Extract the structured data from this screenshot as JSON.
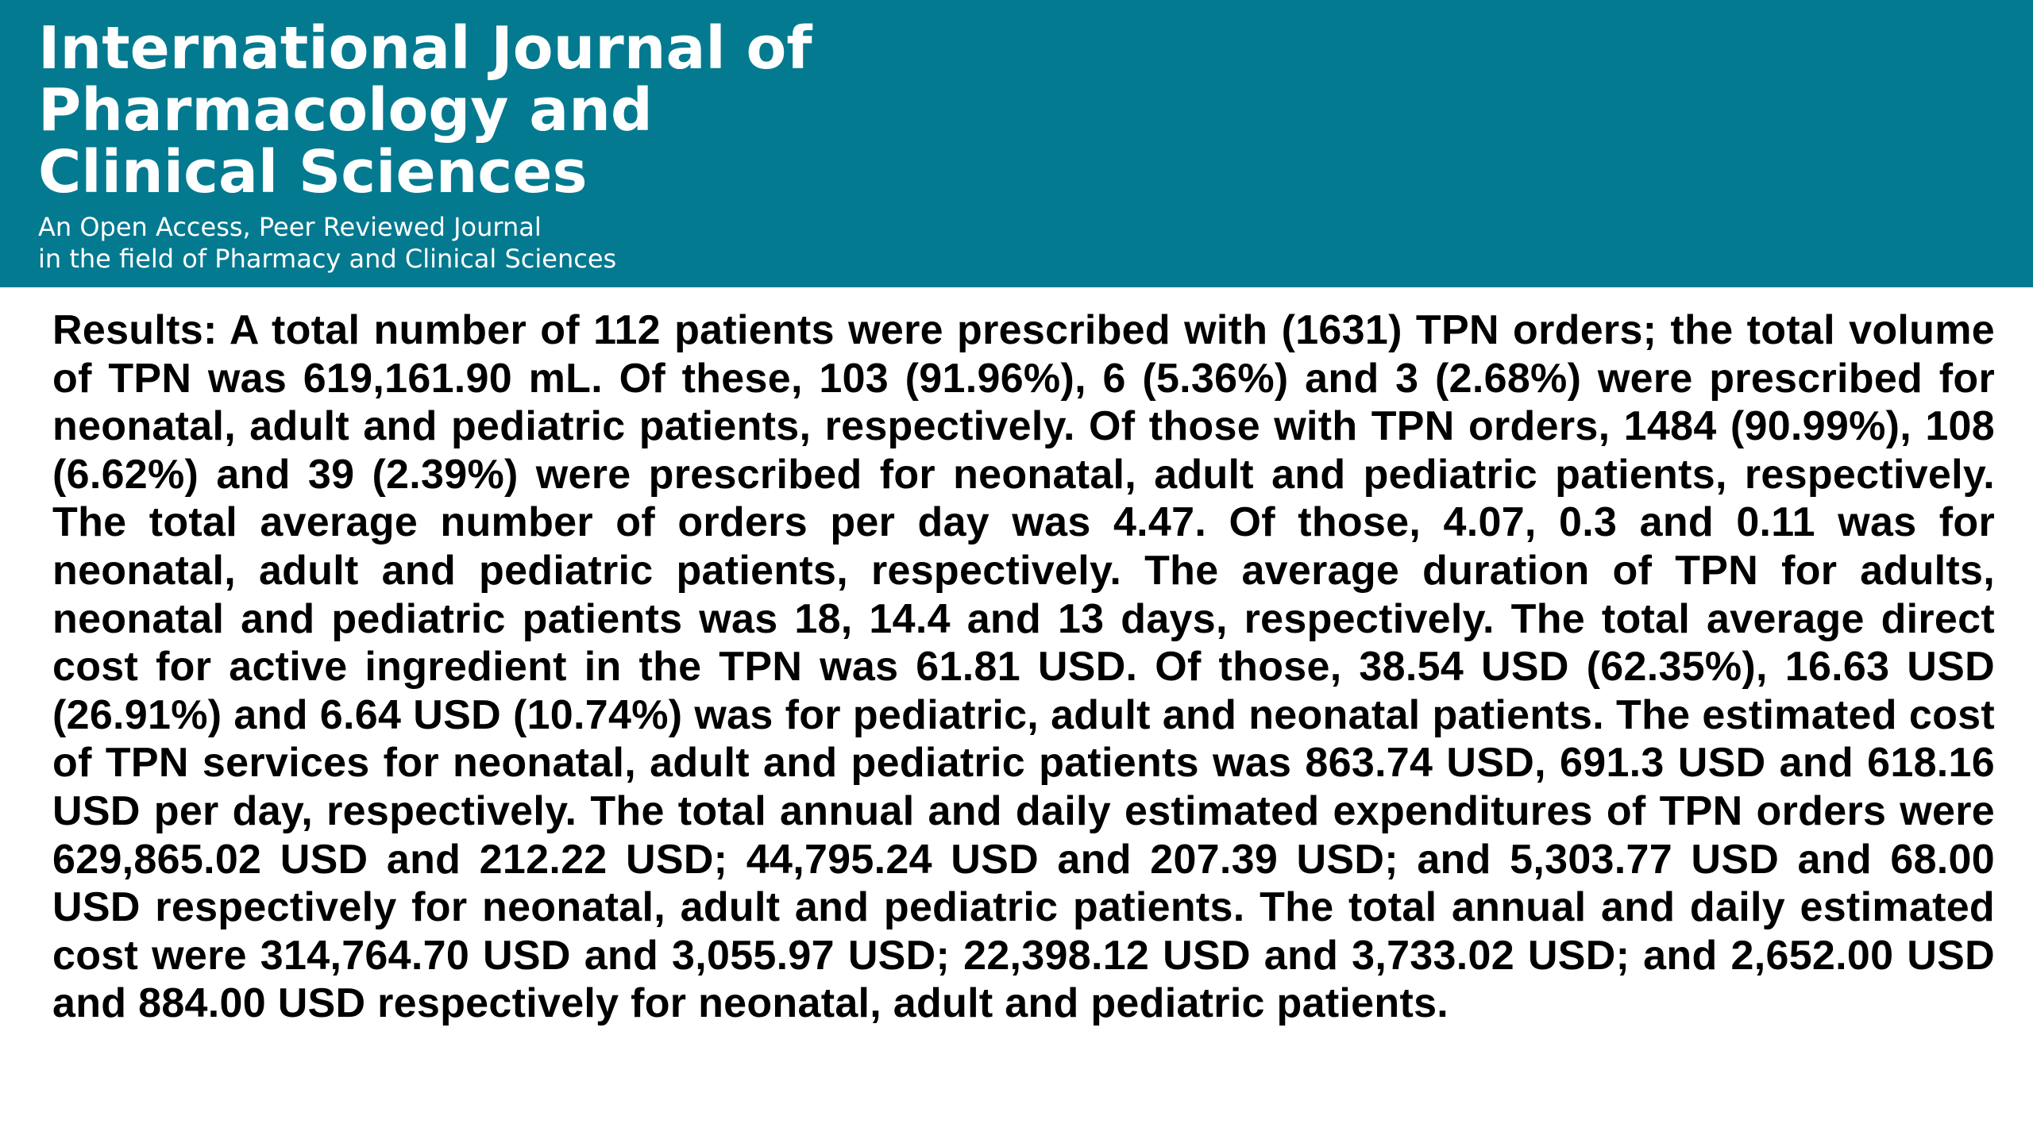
{
  "header": {
    "title_lines": [
      "International Journal of",
      "Pharmacology and",
      "Clinical Sciences"
    ],
    "tagline_lines": [
      "An Open Access, Peer Reviewed Journal",
      "in the field of Pharmacy and Clinical Sciences"
    ],
    "background_color": "#047a90",
    "text_color": "#ffffff"
  },
  "abstract": {
    "label": "Results:",
    "text": "A total number of 112 patients were prescribed with (1631) TPN orders; the total volume of TPN was 619,161.90 mL. Of these, 103 (91.96%), 6 (5.36%) and 3 (2.68%) were prescribed for neonatal, adult and pediatric patients, respectively. Of those with TPN orders, 1484 (90.99%), 108 (6.62%) and 39 (2.39%) were prescribed for neonatal, adult and pediatric patients, respectively. The total average number of orders per day was 4.47. Of those, 4.07, 0.3 and 0.11 was for neonatal, adult and pediatric patients, respectively. The average duration of TPN for adults, neonatal and pediatric patients was 18, 14.4 and 13 days, respectively. The total average direct cost for active ingredient in the TPN was 61.81 USD. Of those, 38.54 USD (62.35%), 16.63 USD (26.91%) and 6.64 USD (10.74%) was for pediatric, adult and neonatal patients. The estimated cost of TPN services for neonatal, adult and pediatric patients was 863.74 USD, 691.3 USD and 618.16 USD per day, respectively. The total annual and daily estimated expenditures of TPN orders were 629,865.02 USD and 212.22 USD; 44,795.24 USD and 207.39 USD; and 5,303.77 USD and 68.00 USD respectively for neonatal, adult and pediatric patients. The total annual and daily estimated cost were 314,764.70 USD and 3,055.97 USD; 22,398.12 USD and 3,733.02 USD; and 2,652.00 USD and 884.00 USD respectively for neonatal, adult and pediatric patients."
  }
}
